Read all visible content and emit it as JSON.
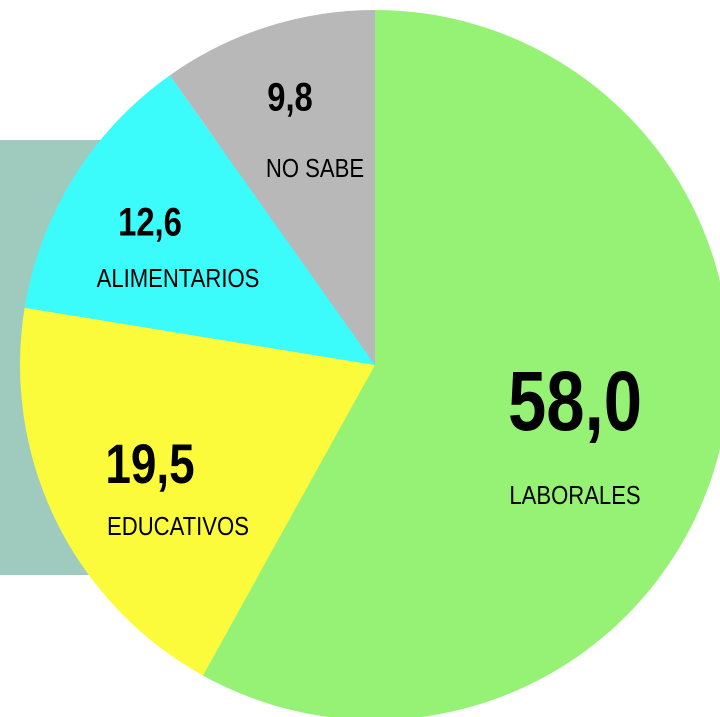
{
  "chart_data": {
    "type": "pie",
    "categories": [
      "LABORALES",
      "EDUCATIVOS",
      "ALIMENTARIOS",
      "NO SABE"
    ],
    "values": [
      58.0,
      19.5,
      12.6,
      9.8
    ],
    "value_labels": [
      "58,0",
      "19,5",
      "12,6",
      "9,8"
    ],
    "colors": [
      "#96f275",
      "#fbfb3c",
      "#3cfbfb",
      "#b8b8b8"
    ]
  }
}
